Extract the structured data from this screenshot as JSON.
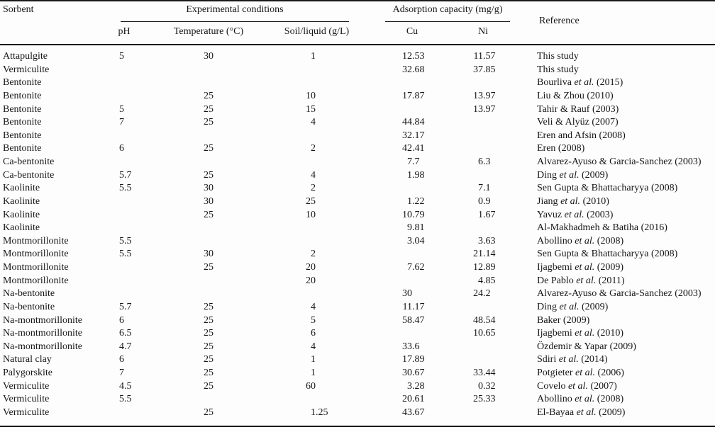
{
  "table": {
    "headers": {
      "sorbent": "Sorbent",
      "experimental_conditions": "Experimental conditions",
      "adsorption_capacity": "Adsorption capacity (mg/g)",
      "reference": "Reference",
      "ph": "pH",
      "temperature": "Temperature (°C)",
      "soil_liquid": "Soil/liquid (g/L)",
      "cu": "Cu",
      "ni": "Ni"
    },
    "rows": [
      {
        "sorbent": "Attapulgite",
        "ph": "5",
        "temp": "30",
        "sl": "1",
        "cu": "12.53",
        "ni": "11.57",
        "ref": "This study"
      },
      {
        "sorbent": "Vermiculite",
        "ph": "",
        "temp": "",
        "sl": "",
        "cu": "32.68",
        "ni": "37.85",
        "ref": "This study"
      },
      {
        "sorbent": "Bentonite",
        "ph": "",
        "temp": "",
        "sl": "",
        "cu": "",
        "ni": "",
        "ref": "Bourliva et al. (2015)"
      },
      {
        "sorbent": "Bentonite",
        "ph": "",
        "temp": "25",
        "sl": "10",
        "cu": "17.87",
        "ni": "13.97",
        "ref": "Liu & Zhou (2010)"
      },
      {
        "sorbent": "Bentonite",
        "ph": "5",
        "temp": "25",
        "sl": "15",
        "cu": "",
        "ni": "13.97",
        "ref": "Tahir & Rauf (2003)"
      },
      {
        "sorbent": "Bentonite",
        "ph": "7",
        "temp": "25",
        "sl": "4",
        "cu": "44.84",
        "ni": "",
        "ref": "Veli & Alyüz (2007)"
      },
      {
        "sorbent": "Bentonite",
        "ph": "",
        "temp": "",
        "sl": "",
        "cu": "32.17",
        "ni": "",
        "ref": "Eren and Afsin (2008)"
      },
      {
        "sorbent": "Bentonite",
        "ph": "6",
        "temp": "25",
        "sl": "2",
        "cu": "42.41",
        "ni": "",
        "ref": "Eren (2008)"
      },
      {
        "sorbent": "Ca-bentonite",
        "ph": "",
        "temp": "",
        "sl": "",
        "cu": "7.7",
        "ni": "6.3",
        "ref": "Alvarez-Ayuso & Garcia-Sanchez (2003)"
      },
      {
        "sorbent": "Ca-bentonite",
        "ph": "5.7",
        "temp": "25",
        "sl": "4",
        "cu": "1.98",
        "ni": "",
        "ref": "Ding et al. (2009)"
      },
      {
        "sorbent": "Kaolinite",
        "ph": "5.5",
        "temp": "30",
        "sl": "2",
        "cu": "",
        "ni": "7.1",
        "ref": "Sen Gupta & Bhattacharyya (2008)"
      },
      {
        "sorbent": "Kaolinite",
        "ph": "",
        "temp": "30",
        "sl": "25",
        "cu": "1.22",
        "ni": "0.9",
        "ref": "Jiang et al. (2010)"
      },
      {
        "sorbent": "Kaolinite",
        "ph": "",
        "temp": "25",
        "sl": "10",
        "cu": "10.79",
        "ni": "1.67",
        "ref": "Yavuz et al. (2003)"
      },
      {
        "sorbent": "Kaolinite",
        "ph": "",
        "temp": "",
        "sl": "",
        "cu": "9.81",
        "ni": "",
        "ref": "Al-Makhadmeh & Batiha (2016)"
      },
      {
        "sorbent": "Montmorillonite",
        "ph": "5.5",
        "temp": "",
        "sl": "",
        "cu": "3.04",
        "ni": "3.63",
        "ref": "Abollino et al. (2008)"
      },
      {
        "sorbent": "Montmorillonite",
        "ph": "5.5",
        "temp": "30",
        "sl": "2",
        "cu": "",
        "ni": "21.14",
        "ref": "Sen Gupta & Bhattacharyya (2008)"
      },
      {
        "sorbent": "Montmorillonite",
        "ph": "",
        "temp": "25",
        "sl": "20",
        "cu": "7.62",
        "ni": "12.89",
        "ref": "Ijagbemi et al. (2009)"
      },
      {
        "sorbent": "Montmorillonite",
        "ph": "",
        "temp": "",
        "sl": "20",
        "cu": "",
        "ni": "4.85",
        "ref": "De Pablo et al. (2011)"
      },
      {
        "sorbent": "Na-bentonite",
        "ph": "",
        "temp": "",
        "sl": "",
        "cu": "30",
        "ni": "24.2",
        "ref": "Alvarez-Ayuso & Garcia-Sanchez (2003)"
      },
      {
        "sorbent": "Na-bentonite",
        "ph": "5.7",
        "temp": "25",
        "sl": "4",
        "cu": "11.17",
        "ni": "",
        "ref": "Ding et al. (2009)"
      },
      {
        "sorbent": "Na-montmorillonite",
        "ph": "6",
        "temp": "25",
        "sl": "5",
        "cu": "58.47",
        "ni": "48.54",
        "ref": "Baker (2009)"
      },
      {
        "sorbent": "Na-montmorillonite",
        "ph": "6.5",
        "temp": "25",
        "sl": "6",
        "cu": "",
        "ni": "10.65",
        "ref": "Ijagbemi et al. (2010)"
      },
      {
        "sorbent": "Na-montmorillonite",
        "ph": "4.7",
        "temp": "25",
        "sl": "4",
        "cu": "33.6",
        "ni": "",
        "ref": "Özdemir & Yapar (2009)"
      },
      {
        "sorbent": "Natural clay",
        "ph": "6",
        "temp": "25",
        "sl": "1",
        "cu": "17.89",
        "ni": "",
        "ref": "Sdiri et al. (2014)"
      },
      {
        "sorbent": "Palygorskite",
        "ph": "7",
        "temp": "25",
        "sl": "1",
        "cu": "30.67",
        "ni": "33.44",
        "ref": "Potgieter et al. (2006)"
      },
      {
        "sorbent": "Vermiculite",
        "ph": "4.5",
        "temp": "25",
        "sl": "60",
        "cu": "3.28",
        "ni": "0.32",
        "ref": "Covelo et al. (2007)"
      },
      {
        "sorbent": "Vermiculite",
        "ph": "5.5",
        "temp": "",
        "sl": "",
        "cu": "20.61",
        "ni": "25.33",
        "ref": "Abollino et al. (2008)"
      },
      {
        "sorbent": "Vermiculite",
        "ph": "",
        "temp": "25",
        "sl": "1.25",
        "cu": "43.67",
        "ni": "",
        "ref": "El-Bayaa et al. (2009)"
      }
    ]
  },
  "colors": {
    "background": "#fdfdfd",
    "text": "#161616",
    "rule": "#1a1a1a"
  }
}
